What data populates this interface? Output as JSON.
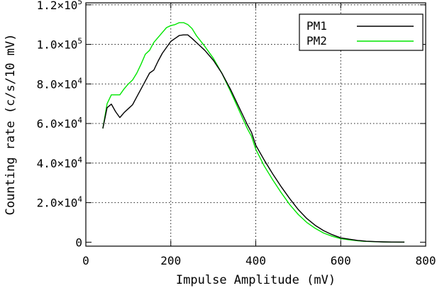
{
  "chart_data": {
    "type": "line",
    "xlabel": "Impulse Amplitude (mV)",
    "ylabel": "Counting rate (c/s/10 mV)",
    "xlim": [
      0,
      800
    ],
    "ylim": [
      -2000,
      121000
    ],
    "x_ticks": [
      {
        "value": 0,
        "label": "0"
      },
      {
        "value": 200,
        "label": "200"
      },
      {
        "value": 400,
        "label": "400"
      },
      {
        "value": 600,
        "label": "600"
      },
      {
        "value": 800,
        "label": "800"
      }
    ],
    "y_ticks": [
      {
        "value": 0,
        "label": "0"
      },
      {
        "value": 20000,
        "mant": "2.0",
        "label": "2.0×10⁴"
      },
      {
        "value": 40000,
        "mant": "4.0",
        "label": "4.0×10⁴"
      },
      {
        "value": 60000,
        "mant": "6.0",
        "label": "6.0×10⁴"
      },
      {
        "value": 80000,
        "mant": "8.0",
        "label": "8.0×10⁴"
      },
      {
        "value": 100000,
        "mant": "1.0",
        "label": "1.0×10⁵"
      },
      {
        "value": 120000,
        "mant": "1.2",
        "label": "1.2×10⁵"
      }
    ],
    "grid": true,
    "legend_position": "top-right",
    "series": [
      {
        "name": "PM1",
        "color": "#000000",
        "x": [
          40,
          50,
          60,
          70,
          80,
          90,
          100,
          110,
          120,
          130,
          140,
          150,
          160,
          170,
          180,
          190,
          200,
          210,
          220,
          230,
          240,
          250,
          260,
          280,
          300,
          320,
          340,
          360,
          380,
          390,
          400,
          420,
          440,
          460,
          480,
          500,
          520,
          540,
          560,
          580,
          600,
          620,
          640,
          660,
          680,
          700,
          720,
          750
        ],
        "y": [
          57500,
          68000,
          69800,
          66000,
          63000,
          65500,
          67500,
          69500,
          73500,
          77500,
          81500,
          85500,
          87000,
          91500,
          95500,
          98500,
          101500,
          103000,
          104500,
          104800,
          104800,
          103000,
          101000,
          97000,
          92000,
          85500,
          77500,
          68500,
          59500,
          55500,
          49000,
          41500,
          34500,
          28000,
          22000,
          16500,
          12000,
          8500,
          5800,
          3800,
          2200,
          1500,
          900,
          500,
          300,
          150,
          80,
          30
        ]
      },
      {
        "name": "PM2",
        "color": "#00e600",
        "x": [
          40,
          50,
          60,
          70,
          80,
          90,
          100,
          110,
          120,
          130,
          140,
          150,
          160,
          170,
          180,
          190,
          200,
          210,
          220,
          230,
          240,
          250,
          260,
          280,
          300,
          320,
          340,
          360,
          380,
          390,
          400,
          420,
          440,
          460,
          480,
          500,
          520,
          540,
          560,
          580,
          600,
          620,
          640,
          660,
          680,
          700,
          720,
          750
        ],
        "y": [
          57500,
          70000,
          74500,
          74500,
          74500,
          77500,
          80000,
          82000,
          85500,
          90000,
          95000,
          97000,
          101000,
          103500,
          106000,
          108500,
          109500,
          110000,
          111000,
          111000,
          110000,
          108000,
          104500,
          99000,
          93000,
          85500,
          76500,
          67000,
          57500,
          53500,
          47000,
          38500,
          31500,
          25000,
          19000,
          14000,
          10000,
          7000,
          4600,
          3000,
          1800,
          1200,
          700,
          400,
          250,
          120,
          60,
          20
        ]
      }
    ]
  }
}
